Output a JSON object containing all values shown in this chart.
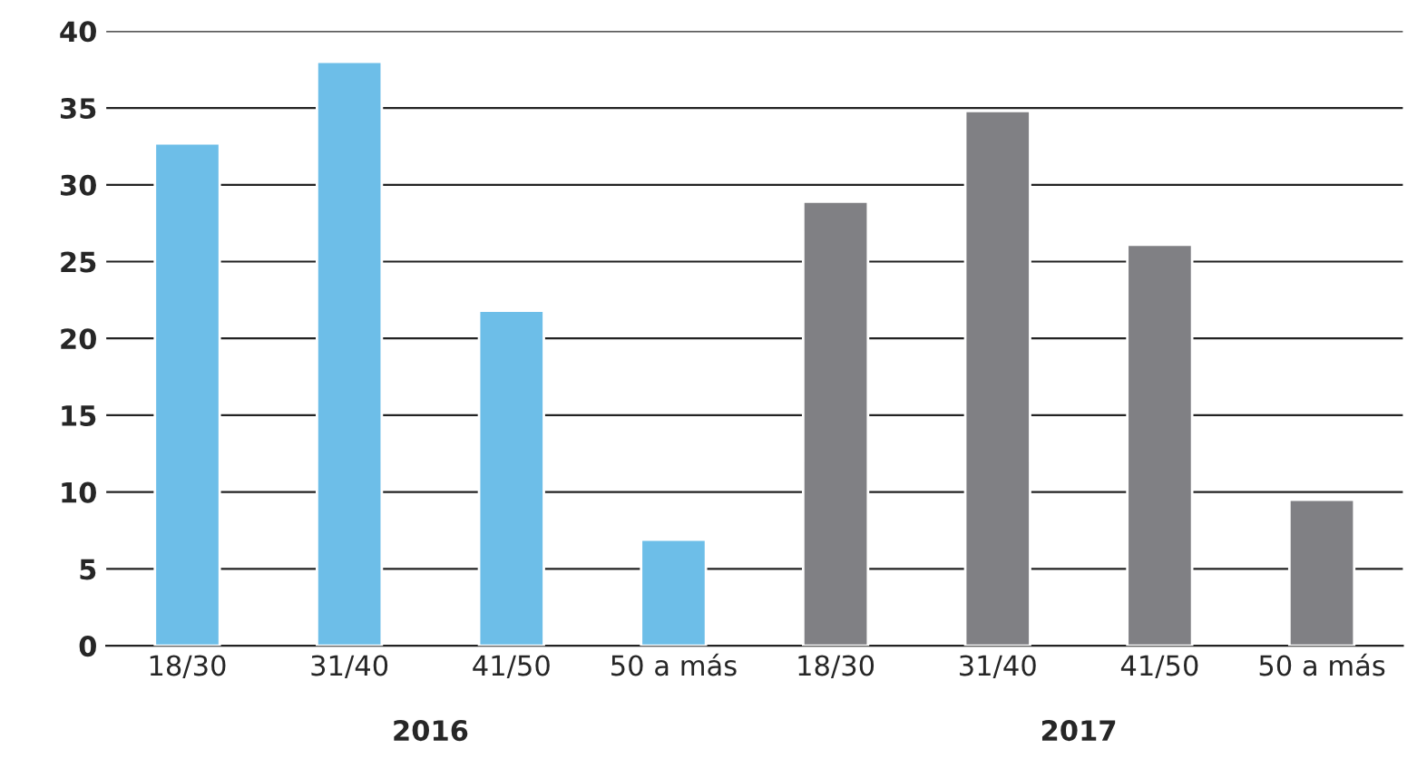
{
  "chart_data": {
    "type": "bar",
    "categories": [
      "18/30",
      "31/40",
      "41/50",
      "50 a más",
      "18/30",
      "31/40",
      "41/50",
      "50 a más"
    ],
    "values": [
      32.7,
      38.0,
      21.8,
      6.9,
      28.9,
      34.8,
      26.1,
      9.5
    ],
    "colors": [
      "#6dbee8",
      "#6dbee8",
      "#6dbee8",
      "#6dbee8",
      "#808084",
      "#808084",
      "#808084",
      "#808084"
    ],
    "annotations": [
      "2016",
      "2017"
    ],
    "ylim": [
      0,
      40
    ],
    "yticks": [
      0,
      5,
      10,
      15,
      20,
      25,
      30,
      35,
      40
    ],
    "grid": "y"
  }
}
